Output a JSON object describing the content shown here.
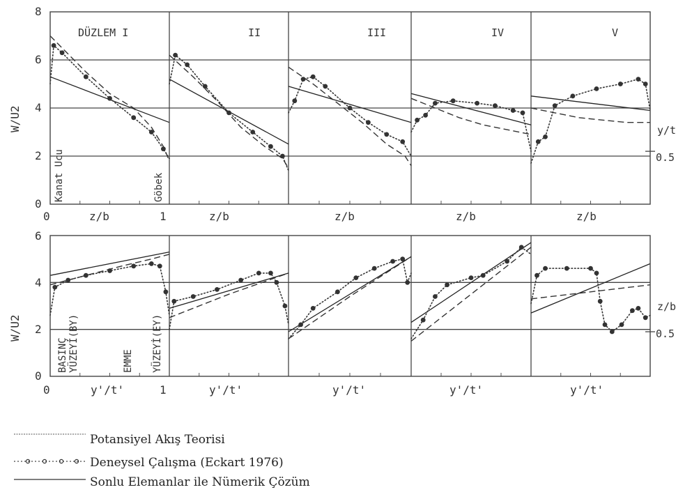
{
  "chart_data": {
    "type": "line",
    "legend": [
      {
        "style": "dashed",
        "label": "Potansiyel Akış Teorisi"
      },
      {
        "style": "dotted-circles",
        "label": "Deneysel Çalışma (Eckart 1976)"
      },
      {
        "style": "solid",
        "label": "Sonlu Elemanlar ile Nümerik Çözüm"
      }
    ],
    "panel_labels": [
      "DÜZLEM I",
      "II",
      "III",
      "IV",
      "V"
    ],
    "top": {
      "ylabel": "W/U2",
      "ylim": [
        0,
        8
      ],
      "yticks": [
        "0",
        "2",
        "4",
        "6",
        "8"
      ],
      "xlabel": "z/b",
      "xticks": [
        "0",
        "1"
      ],
      "left_annotation": "Kanat Ucu",
      "right_annotation": "Göbek",
      "side_label": "y/t",
      "side_value": "0.5",
      "side_value_num": 2.2,
      "panels": [
        {
          "solid": [
            [
              0,
              5.3
            ],
            [
              1,
              3.4
            ]
          ],
          "dashed": [
            [
              0,
              7.0
            ],
            [
              0.1,
              6.5
            ],
            [
              0.3,
              5.5
            ],
            [
              0.5,
              4.6
            ],
            [
              0.7,
              4.0
            ],
            [
              0.85,
              3.2
            ],
            [
              0.95,
              2.4
            ],
            [
              1,
              1.8
            ]
          ],
          "dotted": [
            [
              0,
              5.0
            ],
            [
              0.03,
              6.6
            ],
            [
              0.1,
              6.3
            ],
            [
              0.3,
              5.3
            ],
            [
              0.5,
              4.4
            ],
            [
              0.7,
              3.6
            ],
            [
              0.85,
              3.0
            ],
            [
              0.95,
              2.3
            ],
            [
              1,
              1.9
            ]
          ]
        },
        {
          "solid": [
            [
              0,
              5.2
            ],
            [
              1,
              2.5
            ]
          ],
          "dashed": [
            [
              0,
              6.2
            ],
            [
              0.2,
              5.3
            ],
            [
              0.4,
              4.3
            ],
            [
              0.6,
              3.2
            ],
            [
              0.8,
              2.4
            ],
            [
              0.95,
              1.9
            ],
            [
              1,
              1.5
            ]
          ],
          "dotted": [
            [
              0,
              5.0
            ],
            [
              0.05,
              6.2
            ],
            [
              0.15,
              5.8
            ],
            [
              0.3,
              4.9
            ],
            [
              0.5,
              3.8
            ],
            [
              0.7,
              3.0
            ],
            [
              0.85,
              2.4
            ],
            [
              0.95,
              2.0
            ],
            [
              1,
              1.4
            ]
          ]
        },
        {
          "solid": [
            [
              0,
              4.9
            ],
            [
              1,
              3.4
            ]
          ],
          "dashed": [
            [
              0,
              5.7
            ],
            [
              0.2,
              5.0
            ],
            [
              0.4,
              4.2
            ],
            [
              0.6,
              3.4
            ],
            [
              0.8,
              2.5
            ],
            [
              0.95,
              2.0
            ],
            [
              1,
              1.6
            ]
          ],
          "dotted": [
            [
              0,
              3.8
            ],
            [
              0.05,
              4.3
            ],
            [
              0.12,
              5.2
            ],
            [
              0.2,
              5.3
            ],
            [
              0.3,
              4.9
            ],
            [
              0.5,
              4.0
            ],
            [
              0.65,
              3.4
            ],
            [
              0.8,
              2.9
            ],
            [
              0.93,
              2.6
            ],
            [
              1,
              2.0
            ]
          ]
        },
        {
          "solid": [
            [
              0,
              4.6
            ],
            [
              1,
              3.3
            ]
          ],
          "dashed": [
            [
              0,
              4.4
            ],
            [
              0.2,
              4.0
            ],
            [
              0.4,
              3.6
            ],
            [
              0.6,
              3.3
            ],
            [
              0.8,
              3.1
            ],
            [
              1,
              2.9
            ]
          ],
          "dotted": [
            [
              0,
              3.0
            ],
            [
              0.05,
              3.5
            ],
            [
              0.12,
              3.7
            ],
            [
              0.2,
              4.2
            ],
            [
              0.35,
              4.3
            ],
            [
              0.55,
              4.2
            ],
            [
              0.7,
              4.1
            ],
            [
              0.85,
              3.9
            ],
            [
              0.93,
              3.8
            ],
            [
              1,
              2.2
            ]
          ]
        },
        {
          "solid": [
            [
              0,
              4.5
            ],
            [
              1,
              3.9
            ]
          ],
          "dashed": [
            [
              0,
              4.0
            ],
            [
              0.2,
              3.8
            ],
            [
              0.4,
              3.6
            ],
            [
              0.6,
              3.5
            ],
            [
              0.8,
              3.4
            ],
            [
              1,
              3.4
            ]
          ],
          "dotted": [
            [
              0,
              1.7
            ],
            [
              0.06,
              2.6
            ],
            [
              0.12,
              2.8
            ],
            [
              0.2,
              4.1
            ],
            [
              0.35,
              4.5
            ],
            [
              0.55,
              4.8
            ],
            [
              0.75,
              5.0
            ],
            [
              0.9,
              5.2
            ],
            [
              0.96,
              5.0
            ],
            [
              1,
              3.9
            ]
          ]
        }
      ]
    },
    "bottom": {
      "ylabel": "W/U2",
      "ylim": [
        0,
        6
      ],
      "yticks": [
        "0",
        "2",
        "4",
        "6"
      ],
      "xlabel": "y'/t'",
      "xticks": [
        "0",
        "1"
      ],
      "left_annotation": "BASINÇ YÜZEYİ(BY)",
      "mid_annotation": "EMME",
      "right_annotation": "YÜZEYİ(EY)",
      "side_label": "z/b",
      "side_value": "0.5",
      "side_value_num": 1.9,
      "panels": [
        {
          "solid": [
            [
              0,
              4.3
            ],
            [
              1,
              5.3
            ]
          ],
          "dashed": [
            [
              0,
              3.9
            ],
            [
              0.3,
              4.3
            ],
            [
              0.6,
              4.7
            ],
            [
              0.85,
              5.0
            ],
            [
              1,
              5.2
            ]
          ],
          "dotted": [
            [
              0,
              2.6
            ],
            [
              0.04,
              3.8
            ],
            [
              0.15,
              4.1
            ],
            [
              0.3,
              4.3
            ],
            [
              0.5,
              4.5
            ],
            [
              0.7,
              4.7
            ],
            [
              0.85,
              4.8
            ],
            [
              0.92,
              4.7
            ],
            [
              0.97,
              3.6
            ],
            [
              1,
              2.6
            ]
          ]
        },
        {
          "solid": [
            [
              0,
              2.9
            ],
            [
              1,
              4.4
            ]
          ],
          "dashed": [
            [
              0,
              2.5
            ],
            [
              0.5,
              3.5
            ],
            [
              1,
              4.4
            ]
          ],
          "dotted": [
            [
              0,
              2.0
            ],
            [
              0.04,
              3.2
            ],
            [
              0.2,
              3.4
            ],
            [
              0.4,
              3.7
            ],
            [
              0.6,
              4.1
            ],
            [
              0.75,
              4.4
            ],
            [
              0.85,
              4.4
            ],
            [
              0.9,
              4.0
            ],
            [
              0.97,
              3.0
            ],
            [
              1,
              2.2
            ]
          ]
        },
        {
          "solid": [
            [
              0,
              1.9
            ],
            [
              1,
              5.1
            ]
          ],
          "dashed": [
            [
              0,
              1.6
            ],
            [
              0.5,
              3.4
            ],
            [
              1,
              5.1
            ]
          ],
          "dotted": [
            [
              0,
              1.6
            ],
            [
              0.1,
              2.2
            ],
            [
              0.2,
              2.9
            ],
            [
              0.4,
              3.6
            ],
            [
              0.55,
              4.2
            ],
            [
              0.7,
              4.6
            ],
            [
              0.85,
              4.9
            ],
            [
              0.93,
              5.0
            ],
            [
              0.97,
              4.0
            ],
            [
              1,
              4.4
            ]
          ]
        },
        {
          "solid": [
            [
              0,
              2.3
            ],
            [
              1,
              5.7
            ]
          ],
          "dashed": [
            [
              0,
              1.5
            ],
            [
              0.5,
              3.5
            ],
            [
              1,
              5.5
            ]
          ],
          "dotted": [
            [
              0,
              1.6
            ],
            [
              0.1,
              2.4
            ],
            [
              0.2,
              3.4
            ],
            [
              0.3,
              3.9
            ],
            [
              0.5,
              4.2
            ],
            [
              0.6,
              4.3
            ],
            [
              0.8,
              4.9
            ],
            [
              0.92,
              5.5
            ],
            [
              1,
              5.2
            ]
          ]
        },
        {
          "solid": [
            [
              0,
              2.7
            ],
            [
              1,
              4.8
            ]
          ],
          "dashed": [
            [
              0,
              3.3
            ],
            [
              1,
              3.9
            ]
          ],
          "dotted": [
            [
              0,
              3.1
            ],
            [
              0.05,
              4.3
            ],
            [
              0.12,
              4.6
            ],
            [
              0.3,
              4.6
            ],
            [
              0.5,
              4.6
            ],
            [
              0.55,
              4.4
            ],
            [
              0.58,
              3.2
            ],
            [
              0.62,
              2.2
            ],
            [
              0.68,
              1.9
            ],
            [
              0.76,
              2.2
            ],
            [
              0.85,
              2.8
            ],
            [
              0.9,
              2.9
            ],
            [
              0.96,
              2.5
            ],
            [
              1,
              2.6
            ]
          ]
        }
      ]
    }
  }
}
